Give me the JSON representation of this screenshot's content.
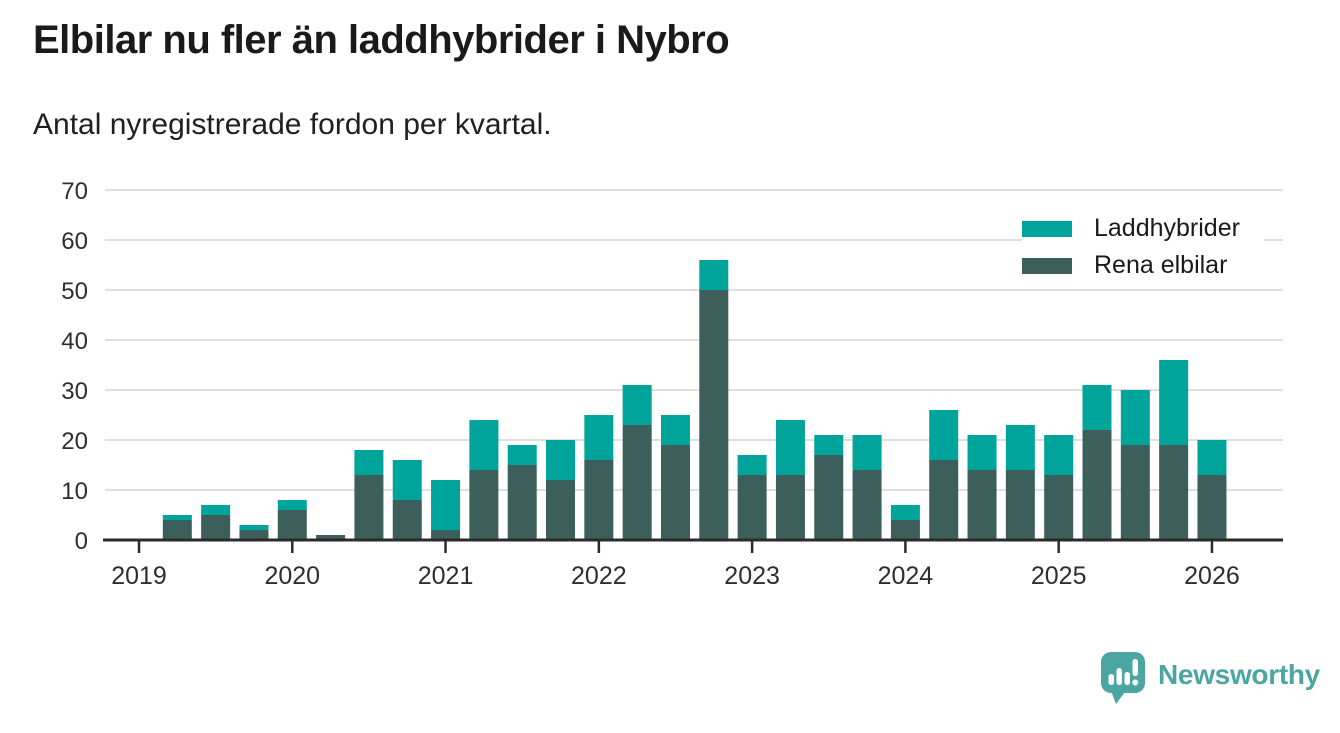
{
  "header": {
    "title": "Elbilar nu fler än laddhybrider i Nybro",
    "subtitle": "Antal nyregistrerade fordon per kvartal."
  },
  "legend": {
    "items": [
      {
        "label": "Laddhybrider",
        "color": "#00A49A"
      },
      {
        "label": "Rena elbilar",
        "color": "#3C5F5B"
      }
    ]
  },
  "chart_data": {
    "type": "bar",
    "stacked": true,
    "title": "Elbilar nu fler än laddhybrider i Nybro",
    "subtitle": "Antal nyregistrerade fordon per kvartal.",
    "categories": [
      "2019 Q1",
      "2019 Q2",
      "2019 Q3",
      "2019 Q4",
      "2020 Q1",
      "2020 Q2",
      "2020 Q3",
      "2020 Q4",
      "2021 Q1",
      "2021 Q2",
      "2021 Q3",
      "2021 Q4",
      "2022 Q1",
      "2022 Q2",
      "2022 Q3",
      "2022 Q4",
      "2023 Q1",
      "2023 Q2",
      "2023 Q3",
      "2023 Q4",
      "2024 Q1",
      "2024 Q2",
      "2024 Q3",
      "2024 Q4",
      "2025 Q1",
      "2025 Q2",
      "2025 Q3",
      "2025 Q4",
      "2026 Q1"
    ],
    "series": [
      {
        "name": "Laddhybrider",
        "color": "#00A49A",
        "stack_order": "top",
        "values": [
          0,
          1,
          2,
          1,
          2,
          0,
          5,
          8,
          10,
          10,
          4,
          8,
          9,
          8,
          6,
          6,
          4,
          11,
          4,
          7,
          3,
          10,
          7,
          9,
          8,
          9,
          11,
          17,
          7
        ]
      },
      {
        "name": "Rena elbilar",
        "color": "#3C5F5B",
        "stack_order": "bottom",
        "values": [
          0,
          4,
          5,
          2,
          6,
          1,
          13,
          8,
          2,
          14,
          15,
          12,
          16,
          23,
          19,
          50,
          13,
          13,
          17,
          14,
          4,
          16,
          14,
          14,
          13,
          22,
          19,
          19,
          13
        ]
      }
    ],
    "totals": [
      0,
      5,
      7,
      3,
      8,
      1,
      18,
      16,
      12,
      24,
      19,
      20,
      25,
      31,
      25,
      56,
      17,
      24,
      21,
      21,
      7,
      26,
      21,
      23,
      21,
      31,
      30,
      36,
      20
    ],
    "ylim": [
      0,
      70
    ],
    "yticks": [
      0,
      10,
      20,
      30,
      40,
      50,
      60,
      70
    ],
    "year_ticks": [
      "2019",
      "2020",
      "2021",
      "2022",
      "2023",
      "2024",
      "2025",
      "2026"
    ],
    "grid": true,
    "legend_position": "top-right",
    "xlabel": "",
    "ylabel": ""
  },
  "footer": {
    "brand": "Newsworthy"
  },
  "colors": {
    "laddhybrider": "#00A49A",
    "rena_elbilar": "#3C5F5B",
    "axis": "#2B2B2B",
    "gridline": "#DFDFDF",
    "tick_label": "#2E2E2E",
    "title": "#1A1A1A",
    "brand": "#4BA5A0"
  }
}
